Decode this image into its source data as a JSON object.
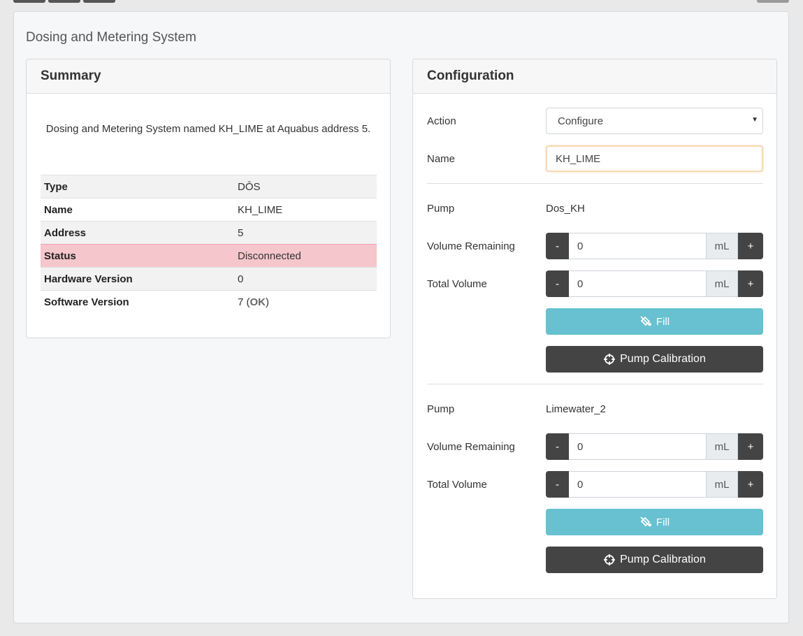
{
  "page": {
    "title": "Dosing and Metering System"
  },
  "summary": {
    "header": "Summary",
    "description": "Dosing and Metering System named KH_LIME at Aquabus address 5.",
    "rows": [
      {
        "key": "Type",
        "value": "DŌS"
      },
      {
        "key": "Name",
        "value": "KH_LIME"
      },
      {
        "key": "Address",
        "value": "5"
      },
      {
        "key": "Status",
        "value": "Disconnected"
      },
      {
        "key": "Hardware Version",
        "value": "0"
      },
      {
        "key": "Software Version",
        "value": "7 (",
        "suffix": "OK",
        "close": ")"
      }
    ]
  },
  "config": {
    "header": "Configuration",
    "action_label": "Action",
    "action_value": "Configure",
    "name_label": "Name",
    "name_value": "KH_LIME",
    "pumps": [
      {
        "pump_label": "Pump",
        "pump_name": "Dos_KH",
        "volume_remaining_label": "Volume Remaining",
        "volume_remaining": "0",
        "total_volume_label": "Total Volume",
        "total_volume": "0",
        "unit": "mL",
        "minus": "-",
        "plus": "+",
        "fill_label": "Fill",
        "calibration_label": "Pump Calibration"
      },
      {
        "pump_label": "Pump",
        "pump_name": "Limewater_2",
        "volume_remaining_label": "Volume Remaining",
        "volume_remaining": "0",
        "total_volume_label": "Total Volume",
        "total_volume": "0",
        "unit": "mL",
        "minus": "-",
        "plus": "+",
        "fill_label": "Fill",
        "calibration_label": "Pump Calibration"
      }
    ]
  },
  "colors": {
    "fill_button": "#67c1d0",
    "dark_button": "#444444",
    "status_danger": "#f5c6cb"
  },
  "icons": {
    "fill": "fill-drip-icon",
    "calibration": "crosshairs-icon",
    "select_caret": "caret-down-icon"
  }
}
